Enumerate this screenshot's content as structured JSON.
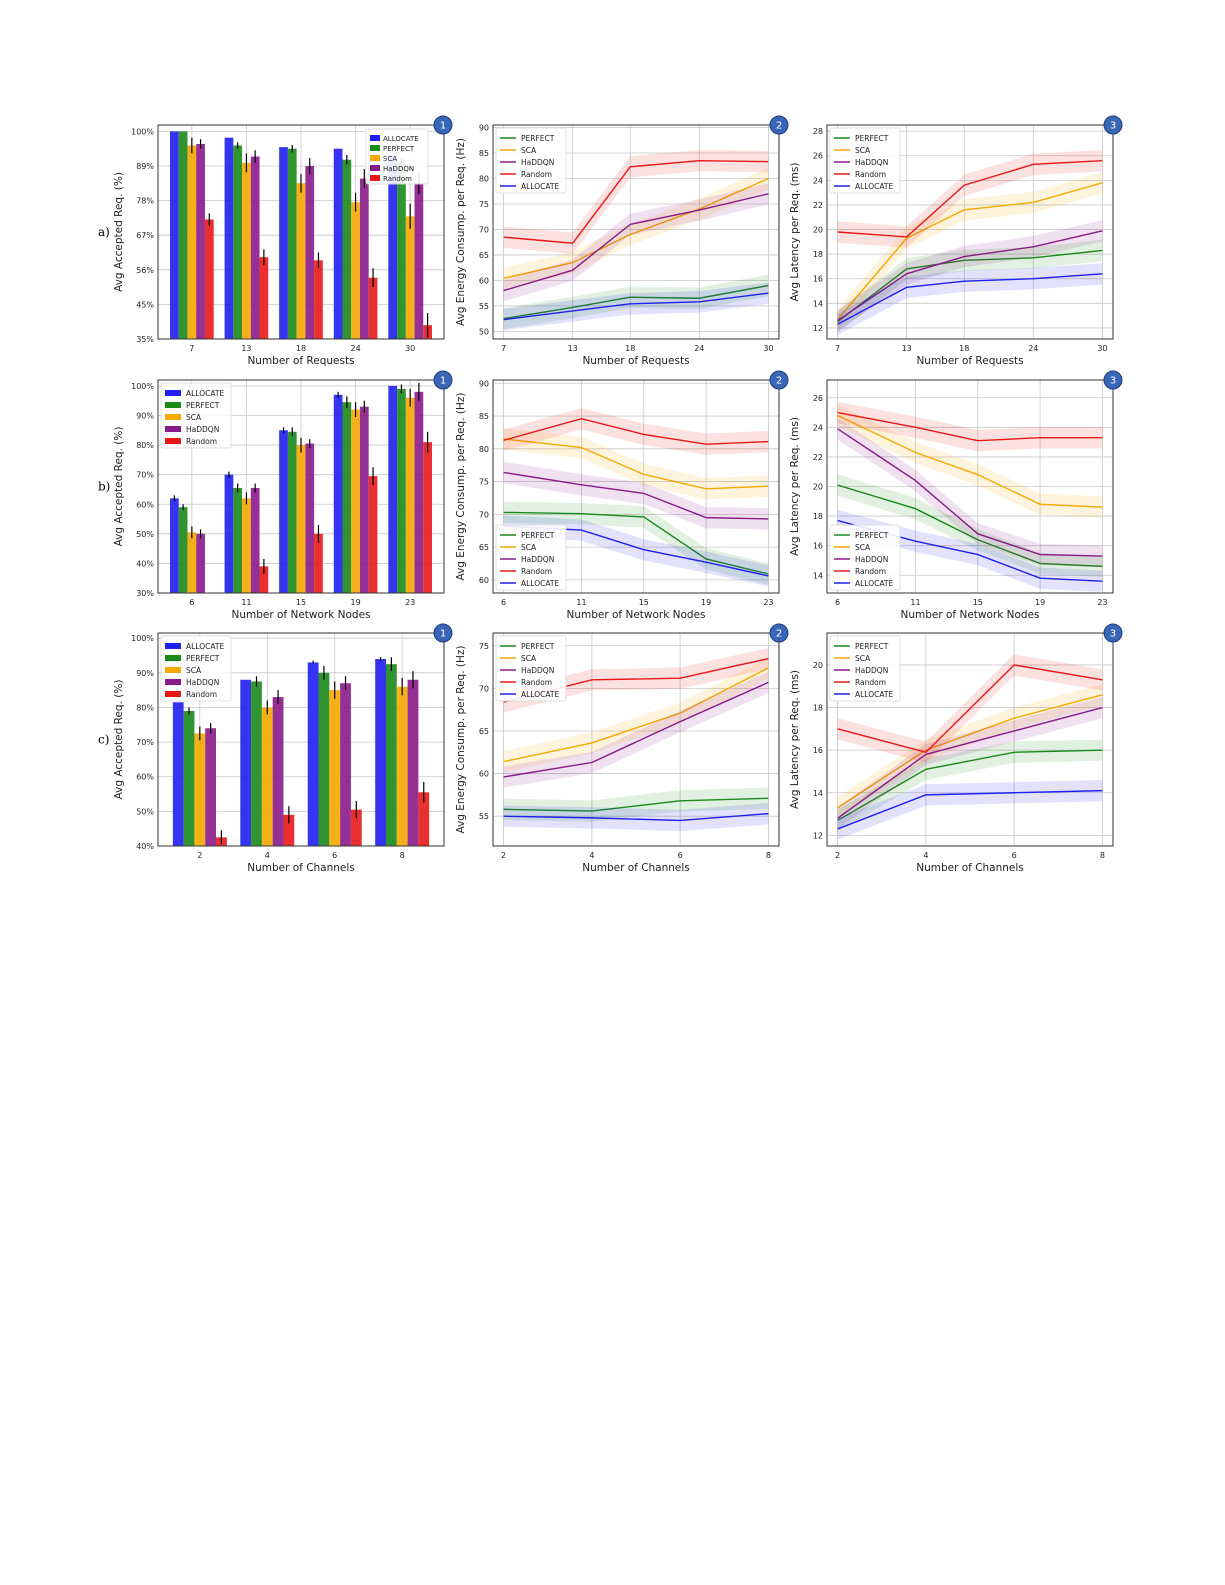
{
  "series_colors": {
    "ALLOCATE": "#1f1ff0",
    "PERFECT": "#1a8a1a",
    "SCA": "#f5a800",
    "HaDDQN": "#8a1a8a",
    "Random": "#e81818"
  },
  "row_labels": [
    "a)",
    "b)",
    "c)"
  ],
  "badges": [
    "1",
    "2",
    "3"
  ],
  "chart_data": [
    {
      "type": "bar",
      "row": 0,
      "col": 0,
      "xlabel": "Number of Requests",
      "ylabel": "Avg Accepted Req. (%)",
      "categories": [
        "7",
        "13",
        "18",
        "24",
        "30"
      ],
      "ylim": [
        35,
        102
      ],
      "yticks": [
        35,
        45,
        56,
        67,
        78,
        89,
        100
      ],
      "ytick_labels": [
        "35%",
        "45%",
        "56%",
        "67%",
        "78%",
        "89%",
        "100%"
      ],
      "legend": "top-right",
      "grid": true,
      "series": [
        {
          "name": "ALLOCATE",
          "values": [
            100,
            98,
            95,
            94.5,
            92.5
          ],
          "err": [
            0,
            0,
            0,
            0,
            0
          ]
        },
        {
          "name": "PERFECT",
          "values": [
            100,
            95.5,
            94.5,
            91,
            90
          ],
          "err": [
            0,
            1,
            1.2,
            1.5,
            1.5
          ]
        },
        {
          "name": "SCA",
          "values": [
            95.5,
            90,
            83.5,
            77.5,
            73
          ],
          "err": [
            2.5,
            3,
            3,
            3,
            4
          ]
        },
        {
          "name": "HaDDQN",
          "values": [
            96,
            92,
            89,
            85,
            83.5
          ],
          "err": [
            1.5,
            2,
            2.5,
            3,
            3.5
          ]
        },
        {
          "name": "Random",
          "values": [
            72,
            60,
            59,
            53.5,
            39
          ],
          "err": [
            2,
            2.5,
            2.5,
            3,
            3.5
          ]
        }
      ]
    },
    {
      "type": "line",
      "row": 0,
      "col": 1,
      "xlabel": "Number of Requests",
      "ylabel": "Avg Energy Consump. per Req. (Hz)",
      "x": [
        7,
        13,
        18,
        24,
        30
      ],
      "ylim": [
        48.5,
        90.5
      ],
      "yticks": [
        50,
        55,
        60,
        65,
        70,
        75,
        80,
        85,
        90
      ],
      "legend": "top-left",
      "grid": true,
      "series": [
        {
          "name": "PERFECT",
          "values": [
            52.5,
            54.7,
            56.7,
            56.5,
            59
          ]
        },
        {
          "name": "SCA",
          "values": [
            60.4,
            63.5,
            69,
            74,
            80
          ]
        },
        {
          "name": "HaDDQN",
          "values": [
            58,
            62,
            71,
            73.8,
            77
          ]
        },
        {
          "name": "Random",
          "values": [
            68.5,
            67.3,
            82.3,
            83.5,
            83.3
          ]
        },
        {
          "name": "ALLOCATE",
          "values": [
            52.3,
            54,
            55.4,
            55.8,
            57.5
          ]
        }
      ]
    },
    {
      "type": "line",
      "row": 0,
      "col": 2,
      "xlabel": "Number of Requests",
      "ylabel": "Avg Latency per Req. (ms)",
      "x": [
        7,
        13,
        18,
        24,
        30
      ],
      "ylim": [
        11.1,
        28.5
      ],
      "yticks": [
        12,
        14,
        16,
        18,
        20,
        22,
        24,
        26,
        28
      ],
      "legend": "top-left",
      "grid": true,
      "series": [
        {
          "name": "PERFECT",
          "values": [
            12.5,
            16.8,
            17.5,
            17.7,
            18.3
          ]
        },
        {
          "name": "SCA",
          "values": [
            12.7,
            19.3,
            21.6,
            22.2,
            23.8
          ]
        },
        {
          "name": "HaDDQN",
          "values": [
            12.6,
            16.4,
            17.8,
            18.6,
            19.9
          ]
        },
        {
          "name": "Random",
          "values": [
            19.8,
            19.4,
            23.6,
            25.3,
            25.6
          ]
        },
        {
          "name": "ALLOCATE",
          "values": [
            12.3,
            15.3,
            15.8,
            16.0,
            16.4
          ]
        }
      ]
    },
    {
      "type": "bar",
      "row": 1,
      "col": 0,
      "xlabel": "Number of Network Nodes",
      "ylabel": "Avg Accepted Req. (%)",
      "categories": [
        "6",
        "11",
        "15",
        "19",
        "23"
      ],
      "ylim": [
        30,
        102
      ],
      "yticks": [
        30,
        40,
        50,
        60,
        70,
        80,
        90,
        100
      ],
      "ytick_labels": [
        "30%",
        "40%",
        "50%",
        "60%",
        "70%",
        "80%",
        "90%",
        "100%"
      ],
      "legend": "top-left",
      "grid": true,
      "series": [
        {
          "name": "ALLOCATE",
          "values": [
            62,
            70,
            85,
            97,
            100
          ],
          "err": [
            1,
            1,
            1,
            1,
            0
          ]
        },
        {
          "name": "PERFECT",
          "values": [
            59,
            65.5,
            84.5,
            94.5,
            99
          ],
          "err": [
            1,
            1.5,
            1.5,
            2,
            1.5
          ]
        },
        {
          "name": "SCA",
          "values": [
            50.5,
            62,
            80,
            92,
            96
          ],
          "err": [
            2,
            2,
            2.5,
            2.5,
            3
          ]
        },
        {
          "name": "HaDDQN",
          "values": [
            50,
            65.5,
            80.5,
            93,
            98
          ],
          "err": [
            1.5,
            1.5,
            1.5,
            2,
            3
          ]
        },
        {
          "name": "Random",
          "values": [
            null,
            39,
            50,
            69.5,
            81
          ],
          "err": [
            0,
            2.5,
            3,
            3,
            3.5
          ]
        }
      ]
    },
    {
      "type": "line",
      "row": 1,
      "col": 1,
      "xlabel": "Number of Network Nodes",
      "ylabel": "Avg Energy Consump. per Req. (Hz)",
      "x": [
        6,
        11,
        15,
        19,
        23
      ],
      "ylim": [
        58,
        90.5
      ],
      "yticks": [
        60,
        65,
        70,
        75,
        80,
        85,
        90
      ],
      "legend": "bottom-left",
      "grid": true,
      "series": [
        {
          "name": "PERFECT",
          "values": [
            70.3,
            70.1,
            69.6,
            63.2,
            60.9
          ]
        },
        {
          "name": "SCA",
          "values": [
            81.5,
            80.2,
            76.1,
            73.9,
            74.3
          ]
        },
        {
          "name": "HaDDQN",
          "values": [
            76.4,
            74.5,
            73.2,
            69.5,
            69.3
          ]
        },
        {
          "name": "Random",
          "values": [
            81.3,
            84.6,
            82.2,
            80.7,
            81.1
          ]
        },
        {
          "name": "ALLOCATE",
          "values": [
            68.2,
            67.6,
            64.6,
            62.7,
            60.6
          ]
        }
      ]
    },
    {
      "type": "line",
      "row": 1,
      "col": 2,
      "xlabel": "Number of Network Nodes",
      "ylabel": "Avg Latency per Req. (ms)",
      "x": [
        6,
        11,
        15,
        19,
        23
      ],
      "ylim": [
        12.8,
        27.2
      ],
      "yticks": [
        14,
        16,
        18,
        20,
        22,
        24,
        26
      ],
      "legend": "bottom-left",
      "grid": true,
      "series": [
        {
          "name": "PERFECT",
          "values": [
            20.1,
            18.5,
            16.4,
            14.8,
            14.6
          ]
        },
        {
          "name": "SCA",
          "values": [
            24.8,
            22.3,
            20.8,
            18.8,
            18.6
          ]
        },
        {
          "name": "HaDDQN",
          "values": [
            23.9,
            20.4,
            16.8,
            15.4,
            15.3
          ]
        },
        {
          "name": "Random",
          "values": [
            25,
            24,
            23.1,
            23.3,
            23.3
          ]
        },
        {
          "name": "ALLOCATE",
          "values": [
            17.7,
            16.3,
            15.4,
            13.8,
            13.6
          ]
        }
      ]
    },
    {
      "type": "bar",
      "row": 2,
      "col": 0,
      "xlabel": "Number of Channels",
      "ylabel": "Avg Accepted Req. (%)",
      "categories": [
        "2",
        "4",
        "6",
        "8"
      ],
      "ylim": [
        40,
        101.5
      ],
      "yticks": [
        40,
        50,
        60,
        70,
        80,
        90,
        100
      ],
      "ytick_labels": [
        "40%",
        "50%",
        "60%",
        "70%",
        "80%",
        "90%",
        "100%"
      ],
      "legend": "top-left",
      "grid": true,
      "series": [
        {
          "name": "ALLOCATE",
          "values": [
            81.5,
            88,
            93,
            94
          ],
          "err": [
            0,
            0,
            0.5,
            0.5
          ]
        },
        {
          "name": "PERFECT",
          "values": [
            79,
            87.5,
            90,
            92.5
          ],
          "err": [
            1,
            1.5,
            2,
            2
          ]
        },
        {
          "name": "SCA",
          "values": [
            72.5,
            80,
            85,
            86
          ],
          "err": [
            2,
            2,
            2.5,
            2.5
          ]
        },
        {
          "name": "HaDDQN",
          "values": [
            74,
            83,
            87,
            88
          ],
          "err": [
            1.5,
            2,
            2,
            2.5
          ]
        },
        {
          "name": "Random",
          "values": [
            42.5,
            49,
            50.5,
            55.5
          ],
          "err": [
            2,
            2.5,
            2.5,
            3
          ]
        }
      ]
    },
    {
      "type": "line",
      "row": 2,
      "col": 1,
      "xlabel": "Number of Channels",
      "ylabel": "Avg Energy Consump. per Req. (Hz)",
      "x": [
        2,
        4,
        6,
        8
      ],
      "ylim": [
        51.5,
        76.5
      ],
      "yticks": [
        55,
        60,
        65,
        70,
        75
      ],
      "legend": "top-left",
      "grid": true,
      "series": [
        {
          "name": "PERFECT",
          "values": [
            55.8,
            55.6,
            56.8,
            57.1
          ]
        },
        {
          "name": "SCA",
          "values": [
            61.4,
            63.6,
            67.1,
            72.4
          ]
        },
        {
          "name": "HaDDQN",
          "values": [
            59.6,
            61.3,
            66.1,
            70.7
          ]
        },
        {
          "name": "Random",
          "values": [
            68.4,
            71,
            71.2,
            73.5
          ]
        },
        {
          "name": "ALLOCATE",
          "values": [
            55,
            54.8,
            54.5,
            55.3
          ]
        }
      ]
    },
    {
      "type": "line",
      "row": 2,
      "col": 2,
      "xlabel": "Number of Channels",
      "ylabel": "Avg Latency per Req. (ms)",
      "x": [
        2,
        4,
        6,
        8
      ],
      "ylim": [
        11.5,
        21.5
      ],
      "yticks": [
        12,
        14,
        16,
        18,
        20
      ],
      "legend": "top-left",
      "grid": true,
      "series": [
        {
          "name": "PERFECT",
          "values": [
            12.7,
            15.1,
            15.9,
            16
          ]
        },
        {
          "name": "SCA",
          "values": [
            13.3,
            16,
            17.5,
            18.6
          ]
        },
        {
          "name": "HaDDQN",
          "values": [
            12.8,
            15.8,
            16.9,
            18
          ]
        },
        {
          "name": "Random",
          "values": [
            17,
            15.9,
            20,
            19.3
          ]
        },
        {
          "name": "ALLOCATE",
          "values": [
            12.3,
            13.9,
            14,
            14.1
          ]
        }
      ]
    }
  ]
}
